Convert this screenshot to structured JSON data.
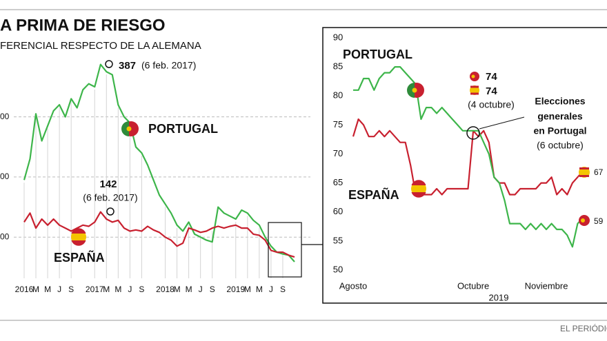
{
  "header": {
    "title": "A PRIMA DE RIESGO",
    "subtitle": "FERENCIAL RESPECTO DE LA ALEMANA"
  },
  "chart_data": [
    {
      "type": "line",
      "grid": true,
      "categories": [
        "2016",
        null,
        "M",
        null,
        "M",
        null,
        "J",
        null,
        "S",
        null,
        null,
        null,
        "2017",
        null,
        "M",
        null,
        "M",
        null,
        "J",
        null,
        "S",
        null,
        null,
        null,
        "2018",
        null,
        "M",
        null,
        "M",
        null,
        "J",
        null,
        "S",
        null,
        null,
        null,
        "2019",
        null,
        "M",
        null,
        "M",
        null,
        "J",
        null,
        "S",
        null,
        null
      ],
      "series": [
        {
          "name": "PORTUGAL",
          "color": "#3db54a",
          "values": [
            195,
            230,
            305,
            260,
            285,
            310,
            320,
            300,
            330,
            315,
            345,
            355,
            350,
            387,
            375,
            370,
            320,
            300,
            290,
            250,
            240,
            220,
            195,
            170,
            155,
            140,
            120,
            110,
            125,
            105,
            100,
            95,
            92,
            150,
            140,
            135,
            130,
            145,
            140,
            128,
            120,
            100,
            85,
            75,
            72,
            70,
            59
          ]
        },
        {
          "name": "ESPAÑA",
          "color": "#c8202f",
          "values": [
            125,
            140,
            115,
            130,
            120,
            130,
            120,
            115,
            110,
            115,
            120,
            118,
            125,
            142,
            130,
            125,
            128,
            115,
            110,
            112,
            110,
            118,
            112,
            108,
            100,
            95,
            85,
            90,
            115,
            112,
            108,
            110,
            115,
            118,
            115,
            118,
            120,
            115,
            115,
            105,
            103,
            95,
            78,
            75,
            75,
            70,
            67
          ]
        }
      ],
      "ylim": [
        35,
        445
      ],
      "yticks": [
        {
          "value": 100,
          "label": "00"
        },
        {
          "value": 200,
          "label": "00"
        },
        {
          "value": 300,
          "label": "00"
        }
      ],
      "peak_portugal_date": "(6 feb. 2017)",
      "peak_spain_date": "(6 feb. 2017)"
    },
    {
      "type": "line",
      "grid": false,
      "categories": [
        "Agosto",
        null,
        null,
        null,
        null,
        null,
        null,
        null,
        null,
        null,
        null,
        null,
        null,
        null,
        null,
        null,
        null,
        null,
        null,
        null,
        null,
        null,
        null,
        "Octubre",
        null,
        null,
        null,
        null,
        null,
        null,
        null,
        null,
        null,
        null,
        null,
        null,
        null,
        "Noviembre",
        null,
        null,
        null,
        null,
        null,
        null,
        null
      ],
      "x_group_label": "2019",
      "series": [
        {
          "name": "PORTUGAL",
          "color": "#3db54a",
          "values": [
            81,
            81,
            83,
            83,
            81,
            83,
            84,
            84,
            85,
            85,
            84,
            83,
            82,
            76,
            78,
            78,
            77,
            78,
            77,
            76,
            75,
            74,
            74,
            74,
            74,
            72,
            70,
            66,
            65,
            62,
            58,
            58,
            58,
            57,
            58,
            57,
            58,
            57,
            58,
            57,
            57,
            56,
            54,
            58,
            59
          ]
        },
        {
          "name": "ESPAÑA",
          "color": "#c8202f",
          "values": [
            73,
            76,
            75,
            73,
            73,
            74,
            73,
            74,
            73,
            72,
            72,
            68,
            63,
            63,
            63,
            63,
            64,
            63,
            64,
            64,
            64,
            64,
            64,
            74,
            73,
            74,
            72,
            66,
            65,
            65,
            63,
            63,
            64,
            64,
            64,
            64,
            65,
            65,
            66,
            63,
            64,
            63,
            65,
            66,
            67
          ]
        }
      ],
      "ylim": [
        49,
        91
      ],
      "yticks": [
        50,
        55,
        60,
        65,
        70,
        75,
        80,
        85,
        90
      ],
      "date_note": "(4 octubre)",
      "event_note": [
        "Elecciones",
        "generales",
        "en Portugal"
      ],
      "event_date": "(6 octubre)"
    }
  ],
  "footer": {
    "source": "EL PERIÓDIC"
  }
}
